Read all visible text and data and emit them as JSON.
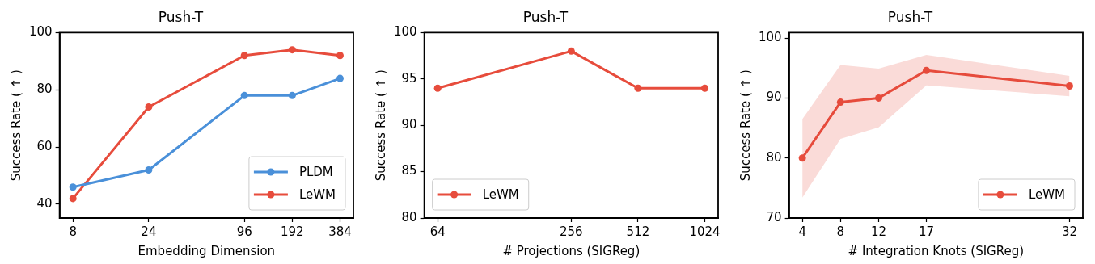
{
  "chart_data": [
    {
      "type": "line",
      "title": "Push-T",
      "xlabel": "Embedding Dimension",
      "ylabel": "Success Rate ( ↑ )",
      "log": "x",
      "x": [
        8,
        24,
        96,
        192,
        384
      ],
      "xlim": [
        6.59,
        466
      ],
      "xticks": [
        8,
        24,
        96,
        192,
        384
      ],
      "ylim": [
        35.2,
        100
      ],
      "yticks": [
        40,
        60,
        80,
        100
      ],
      "marker": "circle",
      "legend": "bottom right",
      "grid": false,
      "series": [
        {
          "name": "PLDM",
          "color": "#4a90d9",
          "values": [
            46,
            52,
            78,
            78,
            84
          ]
        },
        {
          "name": "LeWM",
          "color": "#e74c3c",
          "values": [
            42,
            74,
            92,
            94,
            92
          ]
        }
      ]
    },
    {
      "type": "line",
      "title": "Push-T",
      "xlabel": "# Projections (SIGReg)",
      "ylabel": "Success Rate ( ↑ )",
      "log": "x",
      "x": [
        64,
        256,
        512,
        1024
      ],
      "xlim": [
        55.7,
        1176
      ],
      "xticks": [
        64,
        256,
        512,
        1024
      ],
      "ylim": [
        80,
        100
      ],
      "yticks": [
        80,
        85,
        90,
        95,
        100
      ],
      "marker": "circle",
      "legend": "bottom left",
      "grid": false,
      "series": [
        {
          "name": "LeWM",
          "color": "#e74c3c",
          "values": [
            94,
            98,
            94,
            94
          ]
        }
      ]
    },
    {
      "type": "line",
      "title": "Push-T",
      "xlabel": "# Integration Knots (SIGReg)",
      "ylabel": "Success Rate ( ↑ )",
      "x": [
        4,
        8,
        12,
        17,
        32
      ],
      "xlim": [
        2.6,
        33.4
      ],
      "xticks": [
        4,
        8,
        12,
        17,
        32
      ],
      "ylim": [
        70,
        100.9
      ],
      "yticks": [
        70,
        80,
        90,
        100
      ],
      "marker": "circle",
      "legend": "bottom right",
      "grid": false,
      "series": [
        {
          "name": "LeWM",
          "color": "#e74c3c",
          "values": [
            80,
            89.3,
            90,
            94.6,
            92
          ],
          "lower": [
            73.4,
            83.2,
            85.1,
            92.1,
            90.3
          ],
          "upper": [
            86.5,
            95.5,
            94.9,
            97.2,
            93.7
          ]
        }
      ]
    }
  ]
}
